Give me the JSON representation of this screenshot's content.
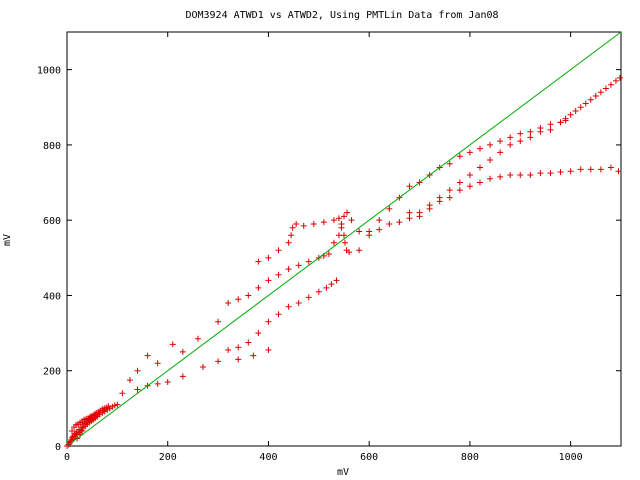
{
  "chart_data": {
    "type": "scatter",
    "title": "DOM3924 ATWD1 vs ATWD2, Using PMTLin Data from Jan08",
    "xlabel": "mV",
    "ylabel": "mV",
    "xlim": [
      0,
      1100
    ],
    "ylim": [
      0,
      1100
    ],
    "xticks": [
      "0",
      "200",
      "400",
      "600",
      "800",
      "1000"
    ],
    "yticks": [
      "0",
      "200",
      "400",
      "600",
      "800",
      "1000"
    ],
    "grid": false,
    "colors": {
      "points": "#dd0000",
      "line": "#00aa00",
      "axes": "#000000"
    },
    "series": [
      {
        "kind": "points",
        "marker": "+",
        "points": [
          [
            0,
            0
          ],
          [
            3,
            4
          ],
          [
            6,
            10
          ],
          [
            8,
            16
          ],
          [
            10,
            22
          ],
          [
            12,
            26
          ],
          [
            15,
            30
          ],
          [
            18,
            34
          ],
          [
            20,
            38
          ],
          [
            24,
            44
          ],
          [
            28,
            50
          ],
          [
            32,
            56
          ],
          [
            36,
            60
          ],
          [
            40,
            64
          ],
          [
            45,
            68
          ],
          [
            50,
            72
          ],
          [
            55,
            76
          ],
          [
            60,
            80
          ],
          [
            65,
            84
          ],
          [
            70,
            88
          ],
          [
            75,
            92
          ],
          [
            80,
            96
          ],
          [
            85,
            100
          ],
          [
            90,
            104
          ],
          [
            95,
            108
          ],
          [
            5,
            6
          ],
          [
            8,
            12
          ],
          [
            12,
            18
          ],
          [
            16,
            24
          ],
          [
            20,
            30
          ],
          [
            24,
            36
          ],
          [
            28,
            42
          ],
          [
            32,
            48
          ],
          [
            36,
            52
          ],
          [
            40,
            58
          ],
          [
            44,
            62
          ],
          [
            48,
            66
          ],
          [
            52,
            70
          ],
          [
            56,
            74
          ],
          [
            60,
            78
          ],
          [
            10,
            40
          ],
          [
            14,
            50
          ],
          [
            18,
            56
          ],
          [
            22,
            58
          ],
          [
            26,
            62
          ],
          [
            30,
            66
          ],
          [
            34,
            70
          ],
          [
            38,
            72
          ],
          [
            42,
            74
          ],
          [
            46,
            78
          ],
          [
            50,
            80
          ],
          [
            54,
            84
          ],
          [
            58,
            88
          ],
          [
            62,
            90
          ],
          [
            66,
            94
          ],
          [
            70,
            98
          ],
          [
            74,
            100
          ],
          [
            78,
            102
          ],
          [
            82,
            106
          ],
          [
            20,
            20
          ],
          [
            26,
            30
          ],
          [
            30,
            40
          ],
          [
            36,
            56
          ],
          [
            44,
            70
          ],
          [
            48,
            76
          ],
          [
            56,
            82
          ],
          [
            64,
            88
          ],
          [
            72,
            94
          ],
          [
            100,
            110
          ],
          [
            110,
            140
          ],
          [
            125,
            175
          ],
          [
            140,
            200
          ],
          [
            160,
            240
          ],
          [
            180,
            220
          ],
          [
            210,
            270
          ],
          [
            230,
            250
          ],
          [
            260,
            285
          ],
          [
            300,
            330
          ],
          [
            320,
            380
          ],
          [
            340,
            390
          ],
          [
            360,
            400
          ],
          [
            380,
            420
          ],
          [
            400,
            440
          ],
          [
            420,
            455
          ],
          [
            440,
            470
          ],
          [
            460,
            480
          ],
          [
            480,
            490
          ],
          [
            500,
            500
          ],
          [
            510,
            505
          ],
          [
            520,
            510
          ],
          [
            320,
            255
          ],
          [
            340,
            262
          ],
          [
            360,
            275
          ],
          [
            380,
            300
          ],
          [
            400,
            330
          ],
          [
            420,
            350
          ],
          [
            440,
            370
          ],
          [
            460,
            380
          ],
          [
            480,
            395
          ],
          [
            500,
            410
          ],
          [
            515,
            420
          ],
          [
            525,
            430
          ],
          [
            535,
            440
          ],
          [
            140,
            150
          ],
          [
            160,
            160
          ],
          [
            180,
            165
          ],
          [
            200,
            170
          ],
          [
            230,
            185
          ],
          [
            270,
            210
          ],
          [
            300,
            225
          ],
          [
            340,
            230
          ],
          [
            370,
            240
          ],
          [
            400,
            255
          ],
          [
            380,
            490
          ],
          [
            400,
            500
          ],
          [
            420,
            520
          ],
          [
            440,
            540
          ],
          [
            445,
            560
          ],
          [
            448,
            580
          ],
          [
            455,
            590
          ],
          [
            470,
            585
          ],
          [
            490,
            590
          ],
          [
            510,
            595
          ],
          [
            530,
            600
          ],
          [
            540,
            605
          ],
          [
            545,
            580
          ],
          [
            550,
            560
          ],
          [
            552,
            540
          ],
          [
            555,
            520
          ],
          [
            560,
            515
          ],
          [
            580,
            520
          ],
          [
            600,
            560
          ],
          [
            620,
            600
          ],
          [
            640,
            630
          ],
          [
            660,
            660
          ],
          [
            680,
            690
          ],
          [
            530,
            540
          ],
          [
            540,
            560
          ],
          [
            545,
            590
          ],
          [
            550,
            610
          ],
          [
            556,
            620
          ],
          [
            565,
            600
          ],
          [
            580,
            570
          ],
          [
            600,
            570
          ],
          [
            620,
            575
          ],
          [
            640,
            590
          ],
          [
            660,
            595
          ],
          [
            680,
            605
          ],
          [
            700,
            620
          ],
          [
            720,
            630
          ],
          [
            740,
            650
          ],
          [
            760,
            660
          ],
          [
            780,
            680
          ],
          [
            800,
            690
          ],
          [
            820,
            700
          ],
          [
            840,
            710
          ],
          [
            860,
            715
          ],
          [
            880,
            720
          ],
          [
            900,
            720
          ],
          [
            920,
            720
          ],
          [
            940,
            725
          ],
          [
            960,
            725
          ],
          [
            980,
            728
          ],
          [
            1000,
            730
          ],
          [
            1020,
            735
          ],
          [
            1040,
            735
          ],
          [
            1060,
            735
          ],
          [
            1080,
            740
          ],
          [
            1095,
            730
          ],
          [
            700,
            700
          ],
          [
            720,
            720
          ],
          [
            740,
            740
          ],
          [
            760,
            750
          ],
          [
            780,
            770
          ],
          [
            800,
            780
          ],
          [
            820,
            790
          ],
          [
            840,
            800
          ],
          [
            860,
            810
          ],
          [
            880,
            820
          ],
          [
            900,
            830
          ],
          [
            920,
            835
          ],
          [
            940,
            845
          ],
          [
            960,
            855
          ],
          [
            980,
            860
          ],
          [
            990,
            870
          ],
          [
            1000,
            880
          ],
          [
            1010,
            890
          ],
          [
            1020,
            900
          ],
          [
            1030,
            910
          ],
          [
            1040,
            920
          ],
          [
            1050,
            930
          ],
          [
            1060,
            940
          ],
          [
            1070,
            950
          ],
          [
            1080,
            960
          ],
          [
            1090,
            970
          ],
          [
            1098,
            978
          ],
          [
            680,
            620
          ],
          [
            700,
            610
          ],
          [
            720,
            640
          ],
          [
            740,
            660
          ],
          [
            760,
            680
          ],
          [
            780,
            700
          ],
          [
            800,
            720
          ],
          [
            820,
            740
          ],
          [
            840,
            760
          ],
          [
            860,
            780
          ],
          [
            880,
            800
          ],
          [
            900,
            810
          ],
          [
            920,
            820
          ],
          [
            940,
            835
          ],
          [
            960,
            840
          ],
          [
            980,
            860
          ],
          [
            990,
            865
          ]
        ]
      },
      {
        "kind": "line",
        "points": [
          [
            0,
            0
          ],
          [
            1100,
            1100
          ]
        ]
      }
    ]
  }
}
